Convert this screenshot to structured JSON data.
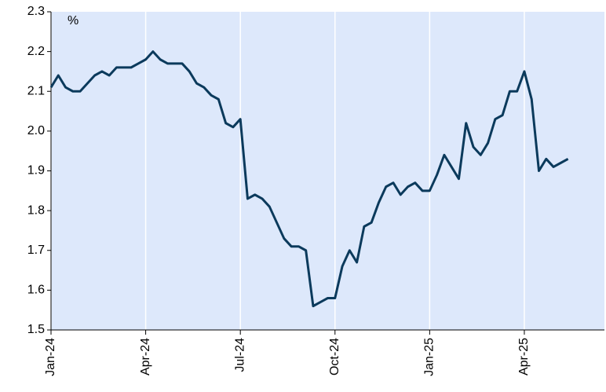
{
  "chart_data": {
    "type": "line",
    "y_label": "%",
    "series": [
      {
        "name": null,
        "color": "#0b3a5c",
        "values": [
          2.11,
          2.14,
          2.11,
          2.1,
          2.1,
          2.12,
          2.14,
          2.15,
          2.14,
          2.16,
          2.16,
          2.16,
          2.17,
          2.18,
          2.2,
          2.18,
          2.17,
          2.17,
          2.17,
          2.15,
          2.12,
          2.11,
          2.09,
          2.08,
          2.02,
          2.01,
          2.03,
          1.83,
          1.84,
          1.83,
          1.81,
          1.77,
          1.73,
          1.71,
          1.71,
          1.7,
          1.56,
          1.57,
          1.58,
          1.58,
          1.66,
          1.7,
          1.67,
          1.76,
          1.77,
          1.82,
          1.86,
          1.87,
          1.84,
          1.86,
          1.87,
          1.85,
          1.85,
          1.89,
          1.94,
          1.91,
          1.88,
          2.02,
          1.96,
          1.94,
          1.97,
          2.03,
          2.04,
          2.1,
          2.1,
          2.15,
          2.08,
          1.9,
          1.93,
          1.91,
          1.92,
          1.93
        ]
      }
    ],
    "xlim": [
      0,
      76
    ],
    "xticks": [
      {
        "value": 0,
        "label": "Jan-24"
      },
      {
        "value": 13,
        "label": "Apr-24"
      },
      {
        "value": 26,
        "label": "Jul-24"
      },
      {
        "value": 39,
        "label": "Oct-24"
      },
      {
        "value": 52,
        "label": "Jan-25"
      },
      {
        "value": 65,
        "label": "Apr-25"
      }
    ],
    "ylim": [
      1.5,
      2.3
    ],
    "yticks": [
      1.5,
      1.6,
      1.7,
      1.8,
      1.9,
      {
        "value": 2.0,
        "label": "2.0"
      },
      2.1,
      2.2,
      2.3
    ],
    "grid": "x"
  }
}
